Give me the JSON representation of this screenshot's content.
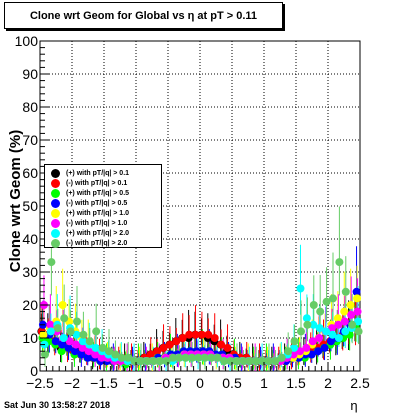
{
  "title": "Clone wrt Geom for Global vs   η at pT > 0.11",
  "timestamp": "Sat Jun 30 13:58:27 2018",
  "chart_data": {
    "type": "scatter",
    "title": "Clone wrt Geom for Global vs   η at pT > 0.11",
    "xlabel": "η",
    "ylabel": "Clone wrt Geom (%)",
    "xlim": [
      -2.5,
      2.5
    ],
    "ylim": [
      0,
      100
    ],
    "x_ticks": [
      "−2.5",
      "−2",
      "−1.5",
      "−1",
      "−0.5",
      "0",
      "0.5",
      "1",
      "1.5",
      "2",
      "2.5"
    ],
    "y_ticks": [
      "0",
      "10",
      "20",
      "30",
      "40",
      "50",
      "60",
      "70",
      "80",
      "90",
      "100"
    ],
    "grid": true,
    "legend_position": "left-middle",
    "x": [
      -2.45,
      -2.35,
      -2.25,
      -2.15,
      -2.05,
      -1.95,
      -1.85,
      -1.75,
      -1.65,
      -1.55,
      -1.45,
      -1.35,
      -1.25,
      -1.15,
      -1.05,
      -0.95,
      -0.85,
      -0.75,
      -0.65,
      -0.55,
      -0.45,
      -0.35,
      -0.25,
      -0.15,
      -0.05,
      0.05,
      0.15,
      0.25,
      0.35,
      0.45,
      0.55,
      0.65,
      0.75,
      0.85,
      0.95,
      1.05,
      1.15,
      1.25,
      1.35,
      1.45,
      1.55,
      1.65,
      1.75,
      1.85,
      1.95,
      2.05,
      2.15,
      2.25,
      2.35,
      2.45
    ],
    "series": [
      {
        "name": "(+) with pT/|q| > 0.1",
        "color": "#000000",
        "values": [
          12,
          10,
          9,
          7,
          8,
          6,
          6,
          5,
          4,
          4,
          4,
          3,
          3,
          3,
          3,
          3,
          4,
          5,
          6,
          7,
          8,
          9,
          10,
          10,
          11,
          11,
          10,
          9,
          8,
          6,
          5,
          4,
          4,
          3,
          3,
          3,
          3,
          3,
          3,
          4,
          4,
          5,
          6,
          6,
          7,
          8,
          9,
          10,
          12,
          14
        ]
      },
      {
        "name": "(-) with pT/|q| > 0.1",
        "color": "#ff0000",
        "values": [
          12,
          11,
          9,
          8,
          7,
          6,
          5,
          5,
          4,
          4,
          3,
          3,
          3,
          3,
          3,
          3,
          4,
          5,
          6,
          7,
          8,
          9,
          10,
          11,
          11,
          11,
          11,
          10,
          8,
          7,
          5,
          4,
          4,
          3,
          3,
          3,
          3,
          3,
          3,
          4,
          4,
          5,
          6,
          7,
          8,
          9,
          10,
          11,
          12,
          14
        ]
      },
      {
        "name": "(+) with pT/|q| > 0.5",
        "color": "#00ff00",
        "values": [
          10,
          9,
          8,
          6,
          7,
          5,
          5,
          4,
          4,
          3,
          3,
          3,
          3,
          2,
          3,
          3,
          3,
          3,
          4,
          4,
          5,
          5,
          6,
          6,
          6,
          6,
          6,
          5,
          5,
          4,
          4,
          3,
          3,
          3,
          3,
          3,
          3,
          3,
          3,
          4,
          4,
          4,
          5,
          6,
          7,
          8,
          9,
          10,
          11,
          13
        ]
      },
      {
        "name": "(-) with pT/|q| > 0.5",
        "color": "#0000ff",
        "values": [
          14,
          11,
          9,
          8,
          7,
          6,
          5,
          4,
          4,
          3,
          3,
          3,
          3,
          3,
          3,
          3,
          3,
          3,
          4,
          4,
          5,
          5,
          6,
          6,
          6,
          6,
          6,
          5,
          5,
          4,
          4,
          3,
          3,
          3,
          3,
          3,
          3,
          3,
          3,
          4,
          4,
          5,
          5,
          6,
          7,
          9,
          10,
          12,
          14,
          24
        ]
      },
      {
        "name": "(+) with pT/|q| > 1.0",
        "color": "#ffff00",
        "values": [
          11,
          13,
          15,
          20,
          15,
          12,
          10,
          8,
          6,
          5,
          4,
          4,
          3,
          3,
          3,
          3,
          3,
          3,
          3,
          4,
          4,
          4,
          5,
          5,
          5,
          5,
          5,
          4,
          4,
          4,
          3,
          3,
          3,
          3,
          3,
          3,
          3,
          3,
          4,
          4,
          5,
          6,
          8,
          10,
          12,
          14,
          16,
          18,
          20,
          22
        ]
      },
      {
        "name": "(-) with pT/|q| > 1.0",
        "color": "#ff00ff",
        "values": [
          20,
          14,
          12,
          10,
          9,
          8,
          7,
          6,
          5,
          4,
          4,
          3,
          3,
          3,
          3,
          3,
          3,
          3,
          3,
          4,
          4,
          4,
          5,
          5,
          5,
          5,
          5,
          4,
          4,
          4,
          3,
          3,
          3,
          3,
          3,
          3,
          3,
          3,
          4,
          5,
          6,
          7,
          9,
          10,
          12,
          13,
          14,
          15,
          17,
          18
        ]
      },
      {
        "name": "(+) with pT/|q| > 2.0",
        "color": "#00ffff",
        "values": [
          8,
          12,
          14,
          10,
          13,
          11,
          9,
          8,
          7,
          6,
          5,
          4,
          4,
          3,
          3,
          3,
          3,
          3,
          3,
          3,
          3,
          4,
          4,
          4,
          4,
          4,
          4,
          4,
          3,
          3,
          3,
          3,
          3,
          3,
          3,
          3,
          3,
          4,
          5,
          7,
          25,
          16,
          14,
          13,
          12,
          11,
          10,
          12,
          13,
          15
        ]
      },
      {
        "name": "(-) with pT/|q| > 2.0",
        "color": "#66cc66",
        "values": [
          5,
          33,
          13,
          16,
          12,
          15,
          11,
          9,
          12,
          7,
          6,
          5,
          4,
          4,
          3,
          3,
          3,
          3,
          3,
          3,
          4,
          4,
          4,
          4,
          4,
          4,
          4,
          4,
          3,
          3,
          3,
          3,
          3,
          3,
          3,
          3,
          3,
          4,
          6,
          9,
          12,
          14,
          20,
          18,
          21,
          22,
          33,
          24,
          14,
          12
        ]
      }
    ]
  }
}
